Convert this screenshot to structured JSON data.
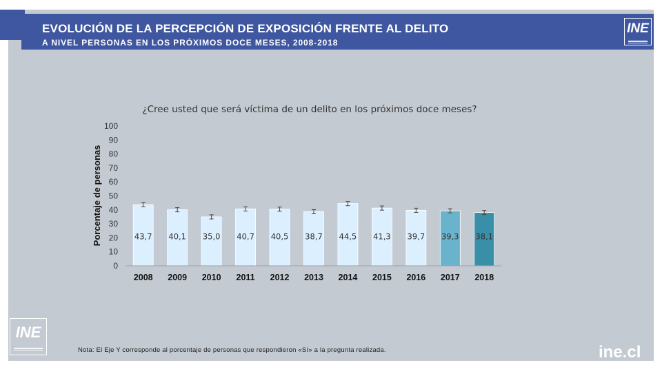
{
  "header": {
    "title": "EVOLUCIÓN DE LA PERCEPCIÓN DE EXPOSICIÓN FRENTE AL DELITO",
    "subtitle": "A NIVEL PERSONAS EN LOS PRÓXIMOS DOCE MESES, 2008-2018"
  },
  "logo": {
    "text": "INE"
  },
  "chart_data": {
    "type": "bar",
    "title": "¿Cree usted que será víctima de un delito en los próximos doce meses?",
    "ylabel": "Porcentaje de personas",
    "xlabel": "",
    "ylim": [
      0,
      100
    ],
    "yticks": [
      0,
      10,
      20,
      30,
      40,
      50,
      60,
      70,
      80,
      90,
      100
    ],
    "categories": [
      "2008",
      "2009",
      "2010",
      "2011",
      "2012",
      "2013",
      "2014",
      "2015",
      "2016",
      "2017",
      "2018"
    ],
    "values": [
      43.7,
      40.1,
      35.0,
      40.7,
      40.5,
      38.7,
      44.5,
      41.3,
      39.7,
      39.3,
      38.1
    ],
    "value_labels": [
      "43,7",
      "40,1",
      "35,0",
      "40,7",
      "40,5",
      "38,7",
      "44,5",
      "41,3",
      "39,7",
      "39,3",
      "38,1"
    ],
    "error_margin": 1.5,
    "bar_colors": [
      "#dcefff",
      "#dcefff",
      "#dcefff",
      "#dcefff",
      "#dcefff",
      "#dcefff",
      "#dcefff",
      "#dcefff",
      "#dcefff",
      "#6ab3cc",
      "#3a8fa8"
    ],
    "grid": false,
    "legend": "none"
  },
  "note": "Nota: El Eje Y corresponde  al porcentaje de personas que respondieron «Sí» a la pregunta realizada.",
  "footer": {
    "url": "ine.cl"
  }
}
